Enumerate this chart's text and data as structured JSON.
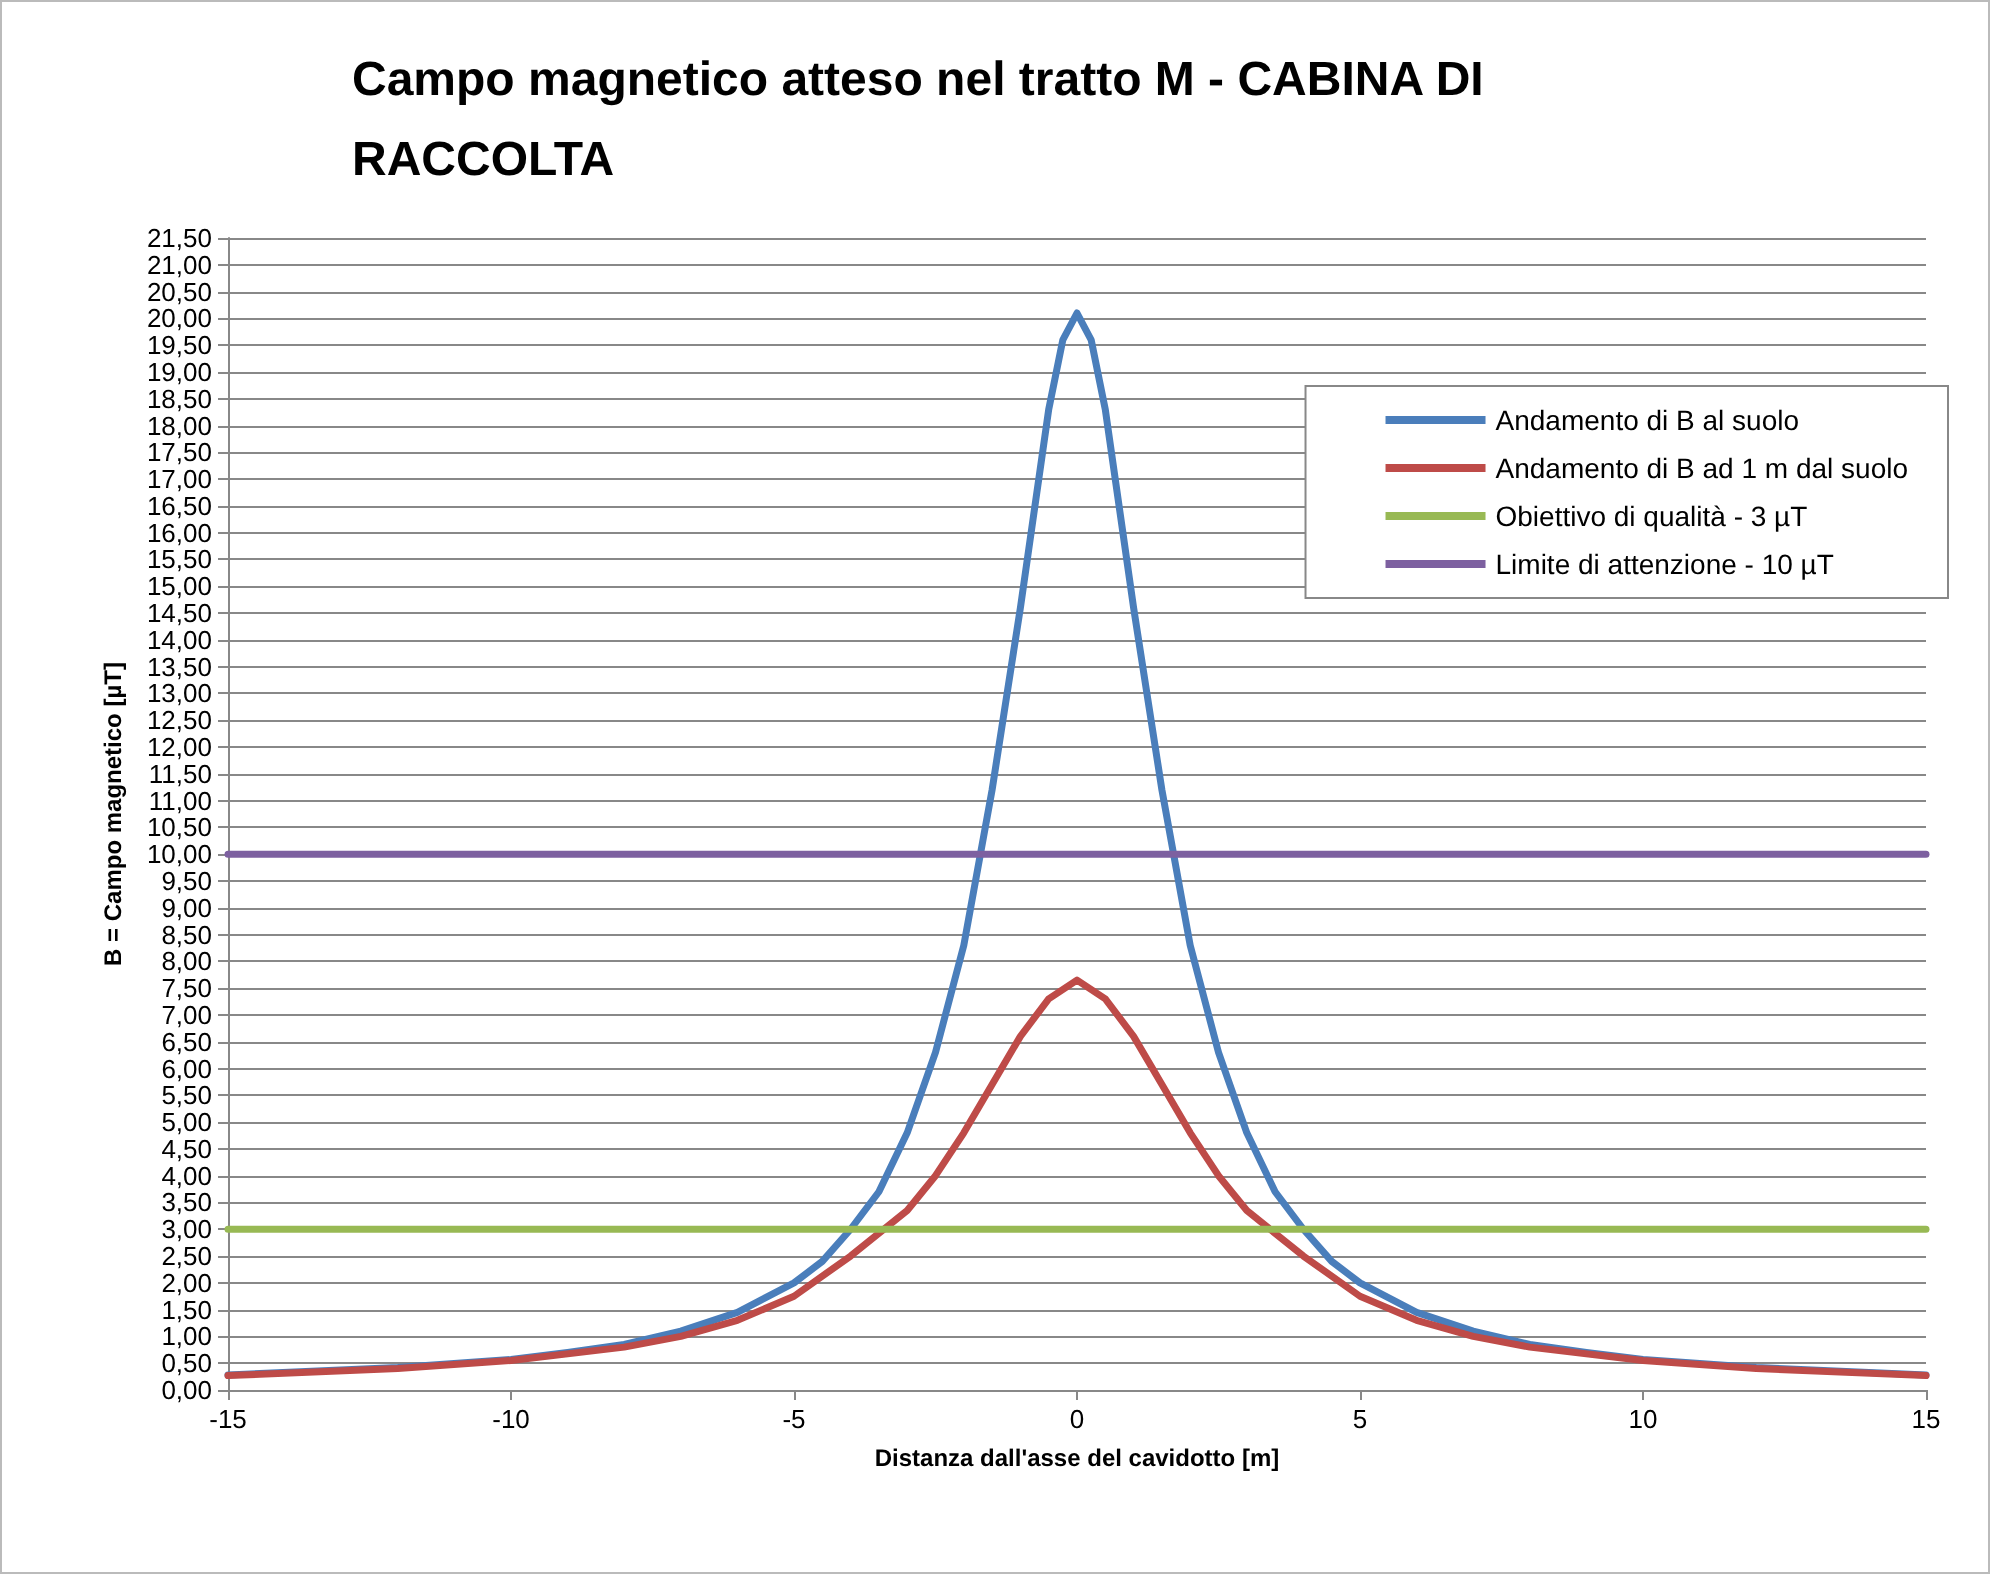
{
  "chart_data": {
    "type": "line",
    "title": "Campo magnetico atteso nel tratto M - CABINA DI RACCOLTA",
    "xlabel": "Distanza dall'asse del cavidotto [m]",
    "ylabel": "B = Campo magnetico [µT]",
    "xlim": [
      -15,
      15
    ],
    "xticks": [
      -15,
      -10,
      -5,
      0,
      5,
      10,
      15
    ],
    "ylim": [
      0,
      21.5
    ],
    "yticks": [
      {
        "value": 0,
        "label": "0,00"
      },
      {
        "value": 0.5,
        "label": "0,50"
      },
      {
        "value": 1,
        "label": "1,00"
      },
      {
        "value": 1.5,
        "label": "1,50"
      },
      {
        "value": 2,
        "label": "2,00"
      },
      {
        "value": 2.5,
        "label": "2,50"
      },
      {
        "value": 3,
        "label": "3,00"
      },
      {
        "value": 3.5,
        "label": "3,50"
      },
      {
        "value": 4,
        "label": "4,00"
      },
      {
        "value": 4.5,
        "label": "4,50"
      },
      {
        "value": 5,
        "label": "5,00"
      },
      {
        "value": 5.5,
        "label": "5,50"
      },
      {
        "value": 6,
        "label": "6,00"
      },
      {
        "value": 6.5,
        "label": "6,50"
      },
      {
        "value": 7,
        "label": "7,00"
      },
      {
        "value": 7.5,
        "label": "7,50"
      },
      {
        "value": 8,
        "label": "8,00"
      },
      {
        "value": 8.5,
        "label": "8,50"
      },
      {
        "value": 9,
        "label": "9,00"
      },
      {
        "value": 9.5,
        "label": "9,50"
      },
      {
        "value": 10,
        "label": "10,00"
      },
      {
        "value": 10.5,
        "label": "10,50"
      },
      {
        "value": 11,
        "label": "11,00"
      },
      {
        "value": 11.5,
        "label": "11,50"
      },
      {
        "value": 12,
        "label": "12,00"
      },
      {
        "value": 12.5,
        "label": "12,50"
      },
      {
        "value": 13,
        "label": "13,00"
      },
      {
        "value": 13.5,
        "label": "13,50"
      },
      {
        "value": 14,
        "label": "14,00"
      },
      {
        "value": 14.5,
        "label": "14,50"
      },
      {
        "value": 15,
        "label": "15,00"
      },
      {
        "value": 15.5,
        "label": "15,50"
      },
      {
        "value": 16,
        "label": "16,00"
      },
      {
        "value": 16.5,
        "label": "16,50"
      },
      {
        "value": 17,
        "label": "17,00"
      },
      {
        "value": 17.5,
        "label": "17,50"
      },
      {
        "value": 18,
        "label": "18,00"
      },
      {
        "value": 18.5,
        "label": "18,50"
      },
      {
        "value": 19,
        "label": "19,00"
      },
      {
        "value": 19.5,
        "label": "19,50"
      },
      {
        "value": 20,
        "label": "20,00"
      },
      {
        "value": 20.5,
        "label": "20,50"
      },
      {
        "value": 21,
        "label": "21,00"
      },
      {
        "value": 21.5,
        "label": "21,50"
      }
    ],
    "grid": "y",
    "legend": "top right",
    "marker": "none",
    "line_style": "solid",
    "series": [
      {
        "name": "Andamento di B al suolo",
        "color": "#4a7ebb",
        "x": [
          -15,
          -12,
          -10,
          -9,
          -8,
          -7,
          -6,
          -5,
          -4.5,
          -4,
          -3.5,
          -3,
          -2.5,
          -2,
          -1.5,
          -1,
          -0.5,
          -0.25,
          0,
          0.25,
          0.5,
          1,
          1.5,
          2,
          2.5,
          3,
          3.5,
          4,
          4.5,
          5,
          6,
          7,
          8,
          9,
          10,
          12,
          15
        ],
        "values": [
          0.28,
          0.42,
          0.57,
          0.7,
          0.85,
          1.1,
          1.45,
          2.0,
          2.4,
          3.0,
          3.7,
          4.8,
          6.3,
          8.3,
          11.2,
          14.6,
          18.3,
          19.6,
          20.1,
          19.6,
          18.3,
          14.6,
          11.2,
          8.3,
          6.3,
          4.8,
          3.7,
          3.0,
          2.4,
          2.0,
          1.45,
          1.1,
          0.85,
          0.7,
          0.57,
          0.42,
          0.28
        ]
      },
      {
        "name": "Andamento di B ad 1 m dal suolo",
        "color": "#be4b48",
        "x": [
          -15,
          -12,
          -10,
          -8,
          -7,
          -6,
          -5,
          -4,
          -3,
          -2.5,
          -2,
          -1.5,
          -1,
          -0.5,
          0,
          0.5,
          1,
          1.5,
          2,
          2.5,
          3,
          4,
          5,
          6,
          7,
          8,
          10,
          12,
          15
        ],
        "values": [
          0.27,
          0.4,
          0.55,
          0.8,
          1.0,
          1.3,
          1.75,
          2.5,
          3.35,
          4.0,
          4.8,
          5.7,
          6.6,
          7.3,
          7.65,
          7.3,
          6.6,
          5.7,
          4.8,
          4.0,
          3.35,
          2.5,
          1.75,
          1.3,
          1.0,
          0.8,
          0.55,
          0.4,
          0.27
        ]
      },
      {
        "name": "Obiettivo di qualità - 3 µT",
        "color": "#98b954",
        "x": [
          -15,
          15
        ],
        "values": [
          3,
          3
        ]
      },
      {
        "name": "Limite di attenzione - 10 µT",
        "color": "#7d60a0",
        "x": [
          -15,
          15
        ],
        "values": [
          10,
          10
        ]
      }
    ]
  }
}
